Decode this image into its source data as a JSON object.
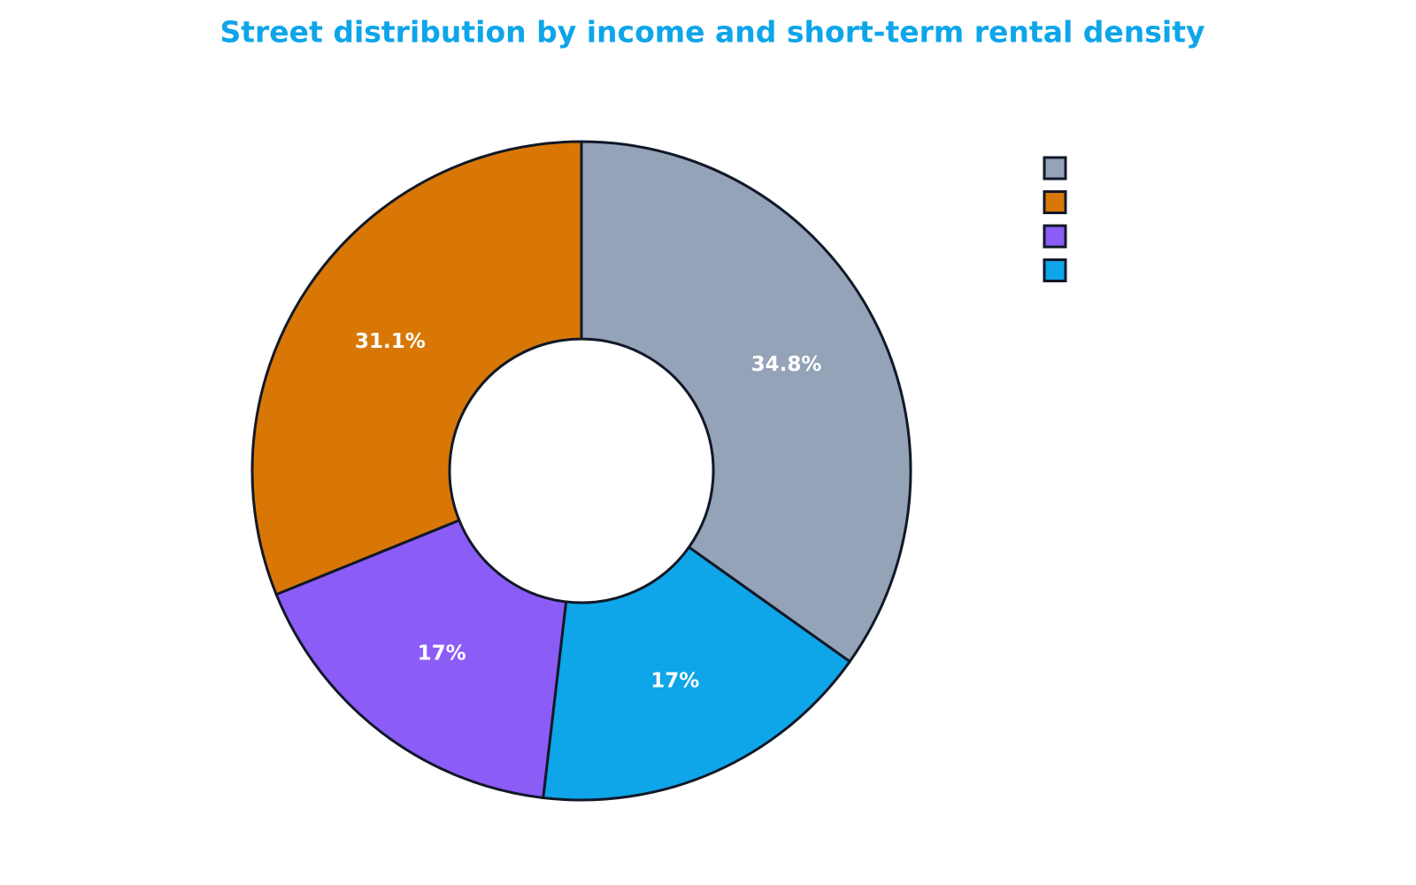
{
  "chart_data": {
    "type": "donut",
    "title": "Street distribution by income and short-term rental density",
    "categories": [
      null,
      null,
      null,
      null
    ],
    "values": [
      34.8,
      31.1,
      17,
      17
    ],
    "value_labels": [
      "34.8%",
      "31.1%",
      "17%",
      "17%"
    ],
    "colors": [
      "#94a3b8",
      "#d97706",
      "#8b5cf6",
      "#0ea5e9"
    ],
    "legend": "top-right"
  }
}
